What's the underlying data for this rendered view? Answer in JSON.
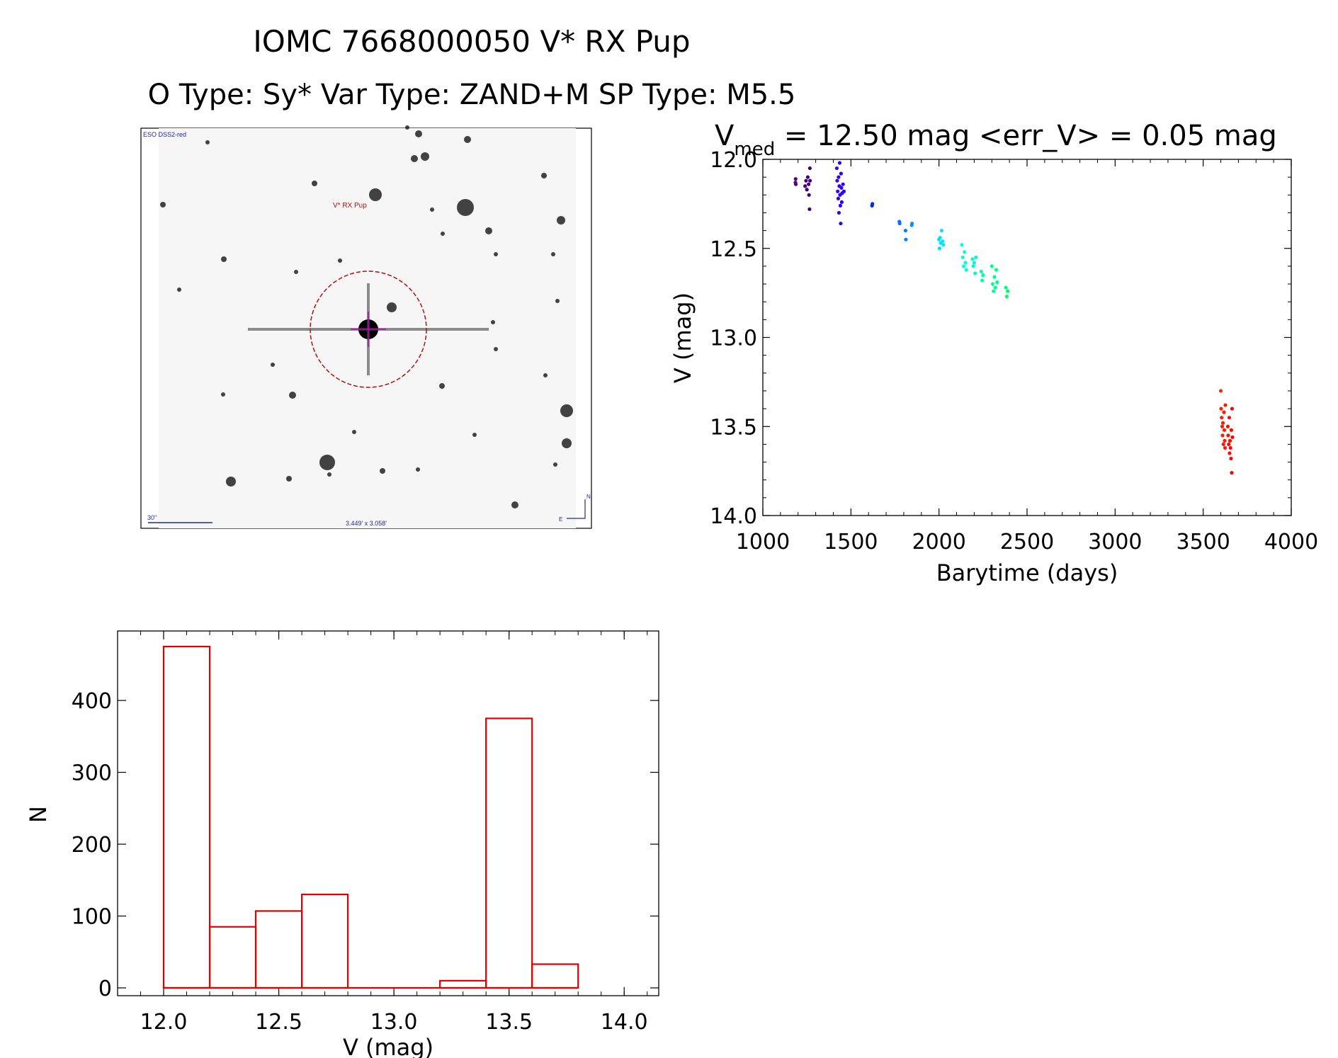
{
  "header": {
    "title": "IOMC 7668000050    V* RX Pup",
    "subtitle": "O Type: Sy*   Var Type: ZAND+M   SP Type: M5.5"
  },
  "finder": {
    "survey_label": "ESO DSS2-red",
    "object_label": "V* RX Pup",
    "scale_label": "30\"",
    "fov_label": "3.449' x 3.058'",
    "north_label": "N",
    "east_label": "E"
  },
  "colors": {
    "histogram": "#e00000",
    "reticle": "#b01010",
    "crosshair": "#c000c0",
    "annotation": "#1a2a9a"
  },
  "light_curve_title": {
    "main": "V",
    "sub": "med",
    "rest": " = 12.50 mag <err_V> = 0.05 mag"
  },
  "chart_data": [
    {
      "type": "scatter",
      "xlabel": "Barytime (days)",
      "ylabel": "V (mag)",
      "xlim": [
        1000,
        4000
      ],
      "ylim": [
        14.0,
        12.0
      ],
      "y_inverted": true,
      "x_ticks": [
        "1000",
        "1500",
        "2000",
        "2500",
        "3000",
        "3500",
        "4000"
      ],
      "y_ticks": [
        "12.0",
        "12.5",
        "13.0",
        "13.5",
        "14.0"
      ],
      "points_colored_by": "time (rainbow)",
      "points": [
        [
          1185,
          12.13
        ],
        [
          1186,
          12.11
        ],
        [
          1187,
          12.14
        ],
        [
          1240,
          12.15
        ],
        [
          1245,
          12.12
        ],
        [
          1250,
          12.17
        ],
        [
          1255,
          12.1
        ],
        [
          1260,
          12.14
        ],
        [
          1262,
          12.2
        ],
        [
          1265,
          12.28
        ],
        [
          1267,
          12.05
        ],
        [
          1268,
          12.12
        ],
        [
          1420,
          12.05
        ],
        [
          1422,
          12.12
        ],
        [
          1425,
          12.18
        ],
        [
          1428,
          12.22
        ],
        [
          1430,
          12.1
        ],
        [
          1432,
          12.3
        ],
        [
          1434,
          12.15
        ],
        [
          1436,
          12.02
        ],
        [
          1438,
          12.2
        ],
        [
          1440,
          12.26
        ],
        [
          1442,
          12.36
        ],
        [
          1444,
          12.08
        ],
        [
          1446,
          12.16
        ],
        [
          1448,
          12.24
        ],
        [
          1450,
          12.19
        ],
        [
          1455,
          12.14
        ],
        [
          1460,
          12.18
        ],
        [
          1620,
          12.26
        ],
        [
          1622,
          12.25
        ],
        [
          1775,
          12.35
        ],
        [
          1777,
          12.36
        ],
        [
          1810,
          12.4
        ],
        [
          1812,
          12.45
        ],
        [
          1845,
          12.37
        ],
        [
          1847,
          12.36
        ],
        [
          2000,
          12.45
        ],
        [
          2003,
          12.5
        ],
        [
          2006,
          12.44
        ],
        [
          2010,
          12.47
        ],
        [
          2015,
          12.4
        ],
        [
          2020,
          12.46
        ],
        [
          2025,
          12.48
        ],
        [
          2130,
          12.48
        ],
        [
          2135,
          12.55
        ],
        [
          2140,
          12.6
        ],
        [
          2145,
          12.52
        ],
        [
          2150,
          12.58
        ],
        [
          2155,
          12.62
        ],
        [
          2190,
          12.56
        ],
        [
          2195,
          12.6
        ],
        [
          2200,
          12.58
        ],
        [
          2205,
          12.64
        ],
        [
          2210,
          12.55
        ],
        [
          2240,
          12.63
        ],
        [
          2245,
          12.68
        ],
        [
          2250,
          12.65
        ],
        [
          2300,
          12.6
        ],
        [
          2305,
          12.7
        ],
        [
          2310,
          12.74
        ],
        [
          2315,
          12.66
        ],
        [
          2320,
          12.72
        ],
        [
          2325,
          12.62
        ],
        [
          2330,
          12.69
        ],
        [
          2380,
          12.72
        ],
        [
          2385,
          12.77
        ],
        [
          2390,
          12.74
        ],
        [
          3600,
          13.3
        ],
        [
          3602,
          13.4
        ],
        [
          3605,
          13.45
        ],
        [
          3608,
          13.5
        ],
        [
          3610,
          13.55
        ],
        [
          3612,
          13.48
        ],
        [
          3615,
          13.6
        ],
        [
          3618,
          13.42
        ],
        [
          3620,
          13.52
        ],
        [
          3622,
          13.58
        ],
        [
          3624,
          13.62
        ],
        [
          3626,
          13.38
        ],
        [
          3640,
          13.5
        ],
        [
          3642,
          13.55
        ],
        [
          3645,
          13.6
        ],
        [
          3648,
          13.45
        ],
        [
          3650,
          13.65
        ],
        [
          3652,
          13.58
        ],
        [
          3655,
          13.62
        ],
        [
          3658,
          13.68
        ],
        [
          3660,
          13.52
        ],
        [
          3662,
          13.76
        ],
        [
          3664,
          13.4
        ],
        [
          3666,
          13.56
        ]
      ]
    },
    {
      "type": "bar",
      "xlabel": "V (mag)",
      "ylabel": "N",
      "xlim": [
        11.8,
        14.15
      ],
      "ylim": [
        0,
        480
      ],
      "x_ticks": [
        "12.0",
        "12.5",
        "13.0",
        "13.5",
        "14.0"
      ],
      "y_ticks": [
        "0",
        "100",
        "200",
        "300",
        "400"
      ],
      "bin_edges": [
        12.0,
        12.2,
        12.4,
        12.6,
        12.8,
        13.0,
        13.2,
        13.4,
        13.6,
        13.8
      ],
      "values": [
        475,
        85,
        107,
        130,
        0,
        0,
        10,
        375,
        33
      ]
    }
  ]
}
